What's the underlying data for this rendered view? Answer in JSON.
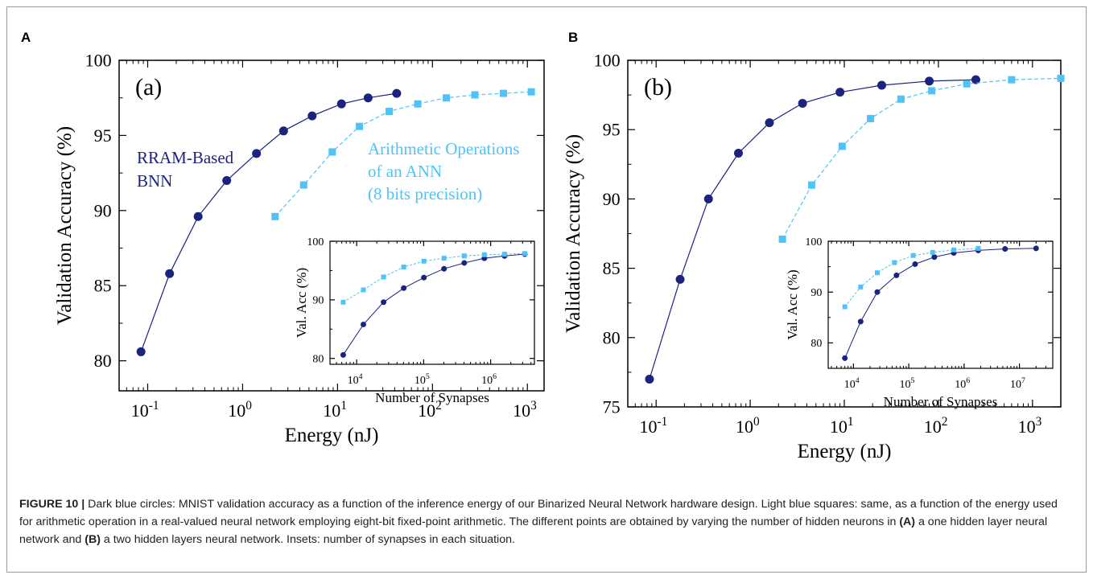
{
  "colors": {
    "dark": "#1a237e",
    "light": "#4fc3f7",
    "axis": "#000000"
  },
  "panels": [
    {
      "letter": "A",
      "main": {
        "tag": "(a)",
        "xlabel": "Energy (nJ)",
        "ylabel": "Validation Accuracy (%)",
        "yticks": [
          "80",
          "85",
          "90",
          "95",
          "100"
        ],
        "xticks": [
          {
            "base": "10",
            "exp": "-1"
          },
          {
            "base": "10",
            "exp": "0"
          },
          {
            "base": "10",
            "exp": "1"
          },
          {
            "base": "10",
            "exp": "2"
          },
          {
            "base": "10",
            "exp": "3"
          }
        ],
        "dark_label": [
          "RRAM-Based",
          "BNN"
        ],
        "light_label": [
          "Arithmetic Operations",
          "of an ANN",
          "(8 bits precision)"
        ]
      },
      "inset": {
        "xlabel": "Number of Synapses",
        "ylabel": "Val. Acc (%)",
        "yticks": [
          "80",
          "90",
          "100"
        ],
        "xticks": [
          {
            "base": "10",
            "exp": "4"
          },
          {
            "base": "10",
            "exp": "5"
          },
          {
            "base": "10",
            "exp": "6"
          }
        ]
      }
    },
    {
      "letter": "B",
      "main": {
        "tag": "(b)",
        "xlabel": "Energy (nJ)",
        "ylabel": "Validation Accuracy (%)",
        "yticks": [
          "75",
          "80",
          "85",
          "90",
          "95",
          "100"
        ],
        "xticks": [
          {
            "base": "10",
            "exp": "-1"
          },
          {
            "base": "10",
            "exp": "0"
          },
          {
            "base": "10",
            "exp": "1"
          },
          {
            "base": "10",
            "exp": "2"
          },
          {
            "base": "10",
            "exp": "3"
          }
        ]
      },
      "inset": {
        "xlabel": "Number of Synapses",
        "ylabel": "Val. Acc (%)",
        "yticks": [
          "80",
          "90",
          "100"
        ],
        "xticks": [
          {
            "base": "10",
            "exp": "4"
          },
          {
            "base": "10",
            "exp": "5"
          },
          {
            "base": "10",
            "exp": "6"
          },
          {
            "base": "10",
            "exp": "7"
          }
        ]
      }
    }
  ],
  "chart_data": [
    {
      "type": "line",
      "panel": "A",
      "xlabel": "Energy (nJ)",
      "ylabel": "Validation Accuracy (%)",
      "xscale": "log",
      "xlim": [
        0.05,
        1500
      ],
      "ylim": [
        78,
        100
      ],
      "series": [
        {
          "name": "RRAM-Based BNN",
          "marker": "circle",
          "x": [
            0.085,
            0.17,
            0.34,
            0.68,
            1.4,
            2.7,
            5.4,
            11,
            21,
            42
          ],
          "y": [
            80.6,
            85.8,
            89.6,
            92.0,
            93.8,
            95.3,
            96.3,
            97.1,
            97.5,
            97.8
          ]
        },
        {
          "name": "Arithmetic Operations of an ANN (8 bits precision)",
          "marker": "square",
          "x": [
            2.2,
            4.4,
            8.8,
            17,
            35,
            70,
            140,
            280,
            560,
            1100
          ],
          "y": [
            89.6,
            91.7,
            93.9,
            95.6,
            96.6,
            97.1,
            97.5,
            97.7,
            97.8,
            97.9
          ]
        }
      ]
    },
    {
      "type": "line",
      "panel": "A",
      "inset": true,
      "xlabel": "Number of Synapses",
      "ylabel": "Val. Acc (%)",
      "xscale": "log",
      "xlim": [
        4000,
        4500000
      ],
      "ylim": [
        79,
        100
      ],
      "series": [
        {
          "marker": "circle",
          "x": [
            6300,
            12600,
            25200,
            50400,
            100800,
            201600,
            403200,
            806400,
            1612800,
            3225600
          ],
          "y": [
            80.6,
            85.8,
            89.6,
            92.0,
            93.8,
            95.3,
            96.3,
            97.1,
            97.5,
            97.8
          ]
        },
        {
          "marker": "square",
          "x": [
            6300,
            12600,
            25200,
            50400,
            100800,
            201600,
            403200,
            806400,
            1612800,
            3225600
          ],
          "y": [
            89.6,
            91.7,
            93.9,
            95.6,
            96.6,
            97.1,
            97.5,
            97.7,
            97.8,
            97.9
          ]
        }
      ]
    },
    {
      "type": "line",
      "panel": "B",
      "xlabel": "Energy (nJ)",
      "ylabel": "Validation Accuracy (%)",
      "xscale": "log",
      "xlim": [
        0.05,
        2000
      ],
      "ylim": [
        75,
        100
      ],
      "series": [
        {
          "marker": "circle",
          "x": [
            0.085,
            0.18,
            0.36,
            0.75,
            1.6,
            3.6,
            9,
            25,
            80,
            250
          ],
          "y": [
            77.0,
            84.2,
            90.0,
            93.3,
            95.5,
            96.9,
            97.7,
            98.2,
            98.5,
            98.6
          ]
        },
        {
          "marker": "square",
          "x": [
            2.2,
            4.5,
            9.5,
            19,
            40,
            85,
            200,
            600,
            2000
          ],
          "y": [
            87.1,
            91.0,
            93.8,
            95.8,
            97.2,
            97.8,
            98.3,
            98.6,
            98.7
          ]
        }
      ]
    },
    {
      "type": "line",
      "panel": "B",
      "inset": true,
      "xlabel": "Number of Synapses",
      "ylabel": "Val. Acc (%)",
      "xscale": "log",
      "xlim": [
        3500,
        40000000
      ],
      "ylim": [
        75,
        100
      ],
      "series": [
        {
          "marker": "circle",
          "x": [
            7000,
            13500,
            27000,
            60000,
            130000,
            290000,
            650000,
            1800000,
            5500000,
            20000000
          ],
          "y": [
            77.0,
            84.2,
            90.0,
            93.3,
            95.5,
            96.9,
            97.7,
            98.2,
            98.5,
            98.6
          ]
        },
        {
          "marker": "square",
          "x": [
            7000,
            13500,
            27000,
            55000,
            120000,
            270000,
            650000,
            1800000
          ],
          "y": [
            87.1,
            91.0,
            93.8,
            95.8,
            97.2,
            97.8,
            98.3,
            98.6
          ]
        }
      ]
    }
  ],
  "caption": {
    "label": "FIGURE 10 |",
    "t1": " Dark blue circles: MNIST validation accuracy as a function of the inference energy of our Binarized Neural Network hardware design. Light blue squares: same, as a function of the energy used for arithmetic operation in a real-valued neural network employing eight-bit fixed-point arithmetic. The different points are obtained by varying the number of hidden neurons in ",
    "a": "(A)",
    "t2": " a one hidden layer neural network and ",
    "b": "(B)",
    "t3": " a two hidden layers neural network. Insets: number of synapses in each situation."
  }
}
